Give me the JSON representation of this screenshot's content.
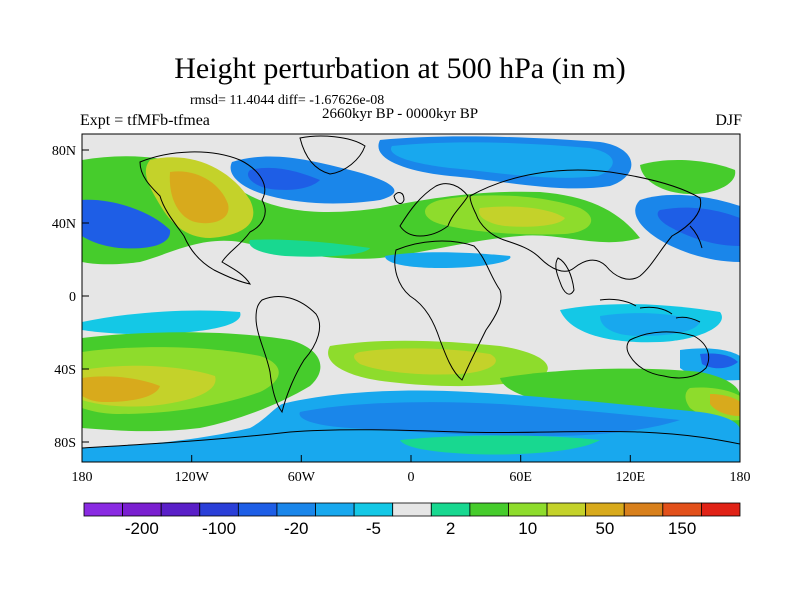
{
  "title": "Height perturbation at 500 hPa (in m)",
  "stats": "rmsd= 11.4044 diff= -1.67626e-08",
  "subtitle": "2660kyr BP - 0000kyr BP",
  "expt": "Expt = tfMFb-tfmea",
  "season": "DJF",
  "axes": {
    "lat_ticks": [
      "80N",
      "40N",
      "0",
      "40S",
      "80S"
    ],
    "lon_ticks": [
      "180",
      "120W",
      "60W",
      "0",
      "60E",
      "120E",
      "180"
    ]
  },
  "colorbar": {
    "colors": [
      "#8a2be2",
      "#7a1fd0",
      "#5a1fc8",
      "#2a3fd8",
      "#1e5ee6",
      "#1a86ea",
      "#18a8ee",
      "#14c8e6",
      "#e6e6e6",
      "#18d890",
      "#46cc2c",
      "#8edc2c",
      "#c4d22a",
      "#d8aa1c",
      "#d8801c",
      "#e2501a",
      "#e02216"
    ],
    "labels": [
      "-200",
      "-100",
      "-20",
      "-5",
      "2",
      "10",
      "50",
      "150"
    ]
  }
}
